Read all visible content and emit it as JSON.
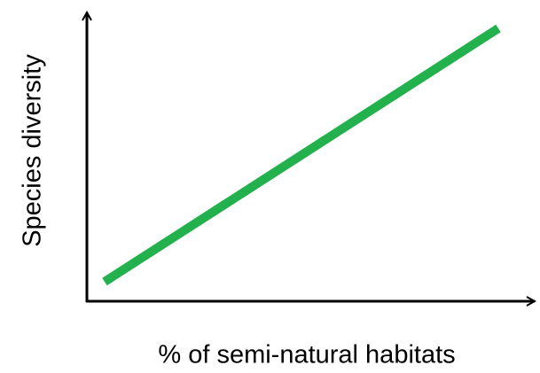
{
  "chart_data": {
    "type": "line",
    "xlabel": "% of semi-natural habitats",
    "ylabel": "Species diversity",
    "color": "#22b14c"
  }
}
